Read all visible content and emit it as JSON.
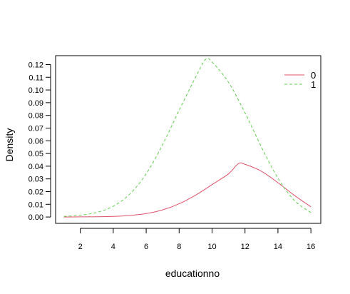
{
  "chart_data": {
    "type": "line",
    "xlabel": "educationno",
    "ylabel": "Density",
    "xlim": [
      0.5,
      16.6
    ],
    "ylim": [
      -0.005,
      0.127
    ],
    "x_ticks": [
      2,
      4,
      6,
      8,
      10,
      12,
      14,
      16
    ],
    "y_ticks": [
      0.0,
      0.01,
      0.02,
      0.03,
      0.04,
      0.05,
      0.06,
      0.07,
      0.08,
      0.09,
      0.1,
      0.11,
      0.12
    ],
    "y_tick_labels": [
      "0.00",
      "0.01",
      "0.02",
      "0.03",
      "0.04",
      "0.05",
      "0.06",
      "0.07",
      "0.08",
      "0.09",
      "0.10",
      "0.11",
      "0.12"
    ],
    "x_tick_labels": [
      "2",
      "4",
      "6",
      "8",
      "10",
      "12",
      "14",
      "16"
    ],
    "legend_position": "top-right",
    "series": [
      {
        "name": "0",
        "color": "#DF536B",
        "dash": "solid",
        "x": [
          1,
          2,
          3,
          4,
          5,
          6,
          7,
          8,
          9,
          10,
          11,
          11.6,
          12,
          13,
          14,
          15,
          16
        ],
        "y": [
          0.0,
          0.0001,
          0.0002,
          0.0005,
          0.0012,
          0.0027,
          0.0056,
          0.0104,
          0.0172,
          0.0255,
          0.034,
          0.042,
          0.0415,
          0.036,
          0.027,
          0.017,
          0.008
        ]
      },
      {
        "name": "1",
        "color": "#61D04F",
        "dash": "dashed",
        "x": [
          1,
          2,
          3,
          4,
          5,
          6,
          7,
          8,
          9,
          9.6,
          10,
          11,
          12,
          13,
          14,
          15,
          16
        ],
        "y": [
          0.0005,
          0.0014,
          0.0036,
          0.0085,
          0.018,
          0.034,
          0.057,
          0.084,
          0.11,
          0.124,
          0.122,
          0.106,
          0.082,
          0.055,
          0.0305,
          0.013,
          0.0035
        ]
      }
    ]
  }
}
